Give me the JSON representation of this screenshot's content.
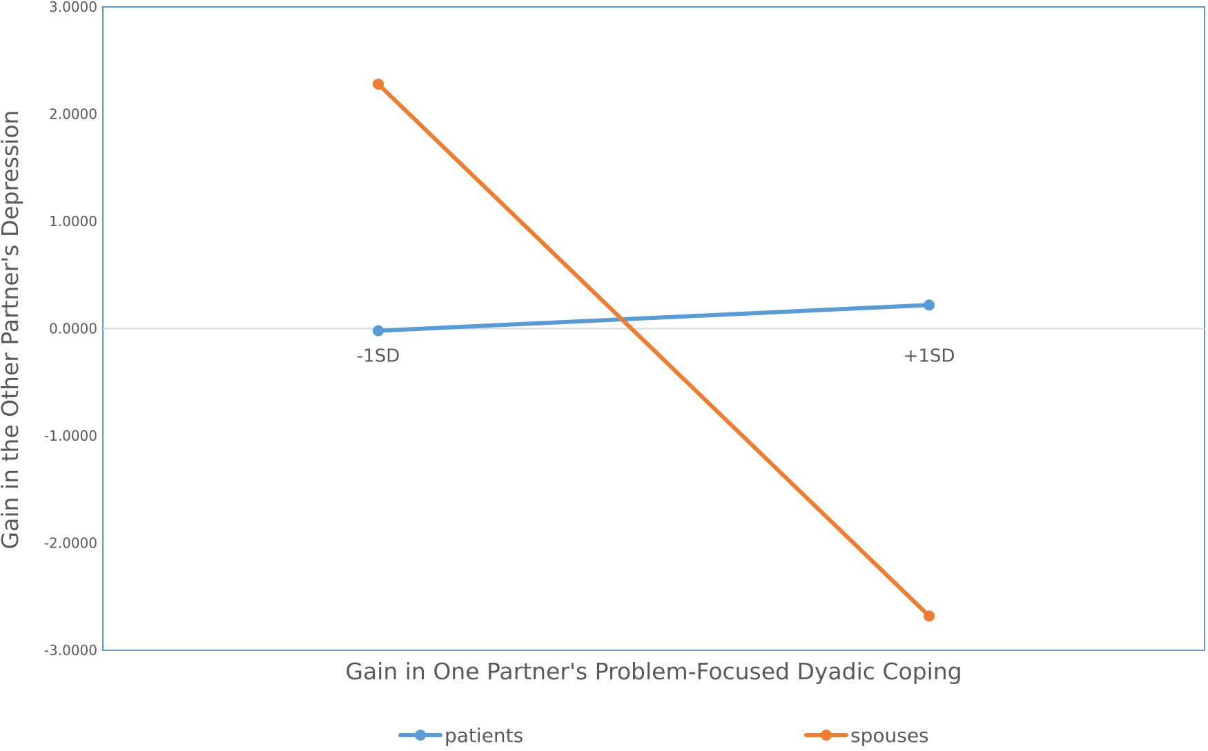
{
  "chart_data": {
    "type": "line",
    "title": "",
    "xlabel": "Gain in One Partner's Problem-Focused Dyadic Coping",
    "ylabel": "Gain in the Other Partner's Depression",
    "categories": [
      "-1SD",
      "+1SD"
    ],
    "ylim": [
      -3,
      3
    ],
    "yticks": [
      "3.0000",
      "2.0000",
      "1.0000",
      "0.0000",
      "-1.0000",
      "-2.0000",
      "-3.0000"
    ],
    "ytick_values": [
      3,
      2,
      1,
      0,
      -1,
      -2,
      -3
    ],
    "series": [
      {
        "name": "patients",
        "values": [
          -0.02,
          0.22
        ],
        "color": "#5b9bd5"
      },
      {
        "name": "spouses",
        "values": [
          2.28,
          -2.68
        ],
        "color": "#ed7d31"
      }
    ],
    "grid": false,
    "zero_line": true,
    "legend_position": "bottom"
  }
}
